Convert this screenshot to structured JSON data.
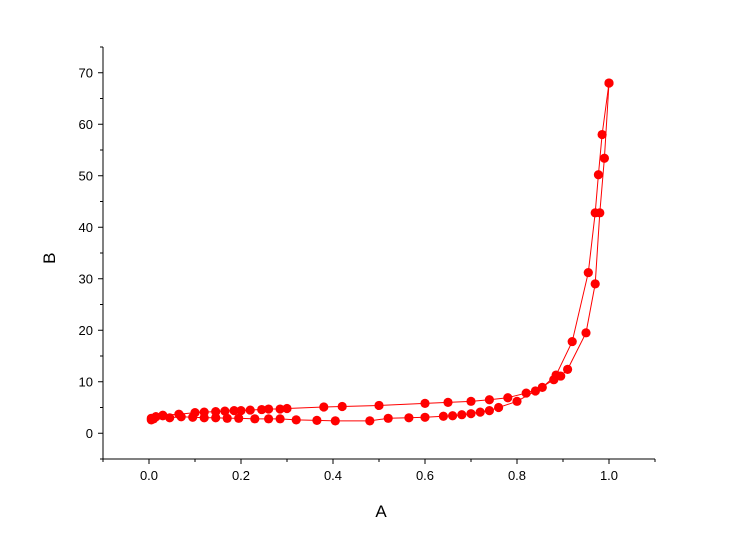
{
  "chart_data": {
    "type": "scatter",
    "title": "",
    "xlabel": "A",
    "ylabel": "B",
    "xlim": [
      -0.1,
      1.1
    ],
    "ylim": [
      -5,
      75
    ],
    "xticks": [
      "0.0",
      "0.2",
      "0.4",
      "0.6",
      "0.8",
      "1.0"
    ],
    "yticks": [
      "0",
      "10",
      "20",
      "30",
      "40",
      "50",
      "60",
      "70"
    ],
    "grid": false,
    "legend": "none",
    "color": "#ff0000",
    "series": [
      {
        "points": [
          [
            0.005,
            2.6
          ],
          [
            0.01,
            2.8
          ],
          [
            0.015,
            3.2
          ],
          [
            0.03,
            3.4
          ],
          [
            0.045,
            3.0
          ],
          [
            0.07,
            3.2
          ],
          [
            0.095,
            3.1
          ],
          [
            0.12,
            3.0
          ],
          [
            0.145,
            3.0
          ],
          [
            0.17,
            2.9
          ],
          [
            0.195,
            2.9
          ],
          [
            0.23,
            2.8
          ],
          [
            0.26,
            2.8
          ],
          [
            0.285,
            2.8
          ],
          [
            0.32,
            2.6
          ],
          [
            0.365,
            2.5
          ],
          [
            0.405,
            2.4
          ],
          [
            0.48,
            2.4
          ],
          [
            0.52,
            2.9
          ],
          [
            0.565,
            3.0
          ],
          [
            0.6,
            3.1
          ],
          [
            0.64,
            3.3
          ],
          [
            0.66,
            3.4
          ],
          [
            0.68,
            3.6
          ],
          [
            0.7,
            3.8
          ],
          [
            0.72,
            4.1
          ],
          [
            0.74,
            4.4
          ],
          [
            0.76,
            5.0
          ],
          [
            0.8,
            6.2
          ],
          [
            0.84,
            8.2
          ],
          [
            0.88,
            10.4
          ],
          [
            0.895,
            11.1
          ],
          [
            0.91,
            12.4
          ],
          [
            0.95,
            19.5
          ],
          [
            0.97,
            29.0
          ],
          [
            0.98,
            42.8
          ],
          [
            0.99,
            53.4
          ],
          [
            1.0,
            68.0
          ]
        ]
      },
      {
        "points": [
          [
            1.0,
            68.0
          ],
          [
            0.985,
            58.0
          ],
          [
            0.977,
            50.2
          ],
          [
            0.97,
            42.8
          ],
          [
            0.955,
            31.2
          ],
          [
            0.92,
            17.8
          ],
          [
            0.885,
            11.3
          ],
          [
            0.855,
            8.9
          ],
          [
            0.82,
            7.8
          ],
          [
            0.78,
            6.9
          ],
          [
            0.74,
            6.5
          ],
          [
            0.7,
            6.2
          ],
          [
            0.65,
            6.0
          ],
          [
            0.6,
            5.8
          ],
          [
            0.5,
            5.4
          ],
          [
            0.42,
            5.2
          ],
          [
            0.38,
            5.1
          ],
          [
            0.3,
            4.8
          ],
          [
            0.285,
            4.7
          ],
          [
            0.26,
            4.7
          ],
          [
            0.245,
            4.6
          ],
          [
            0.22,
            4.5
          ],
          [
            0.2,
            4.4
          ],
          [
            0.185,
            4.4
          ],
          [
            0.165,
            4.3
          ],
          [
            0.145,
            4.2
          ],
          [
            0.12,
            4.1
          ],
          [
            0.1,
            4.0
          ],
          [
            0.065,
            3.7
          ],
          [
            0.03,
            3.5
          ],
          [
            0.015,
            3.2
          ],
          [
            0.005,
            2.9
          ]
        ]
      }
    ]
  }
}
